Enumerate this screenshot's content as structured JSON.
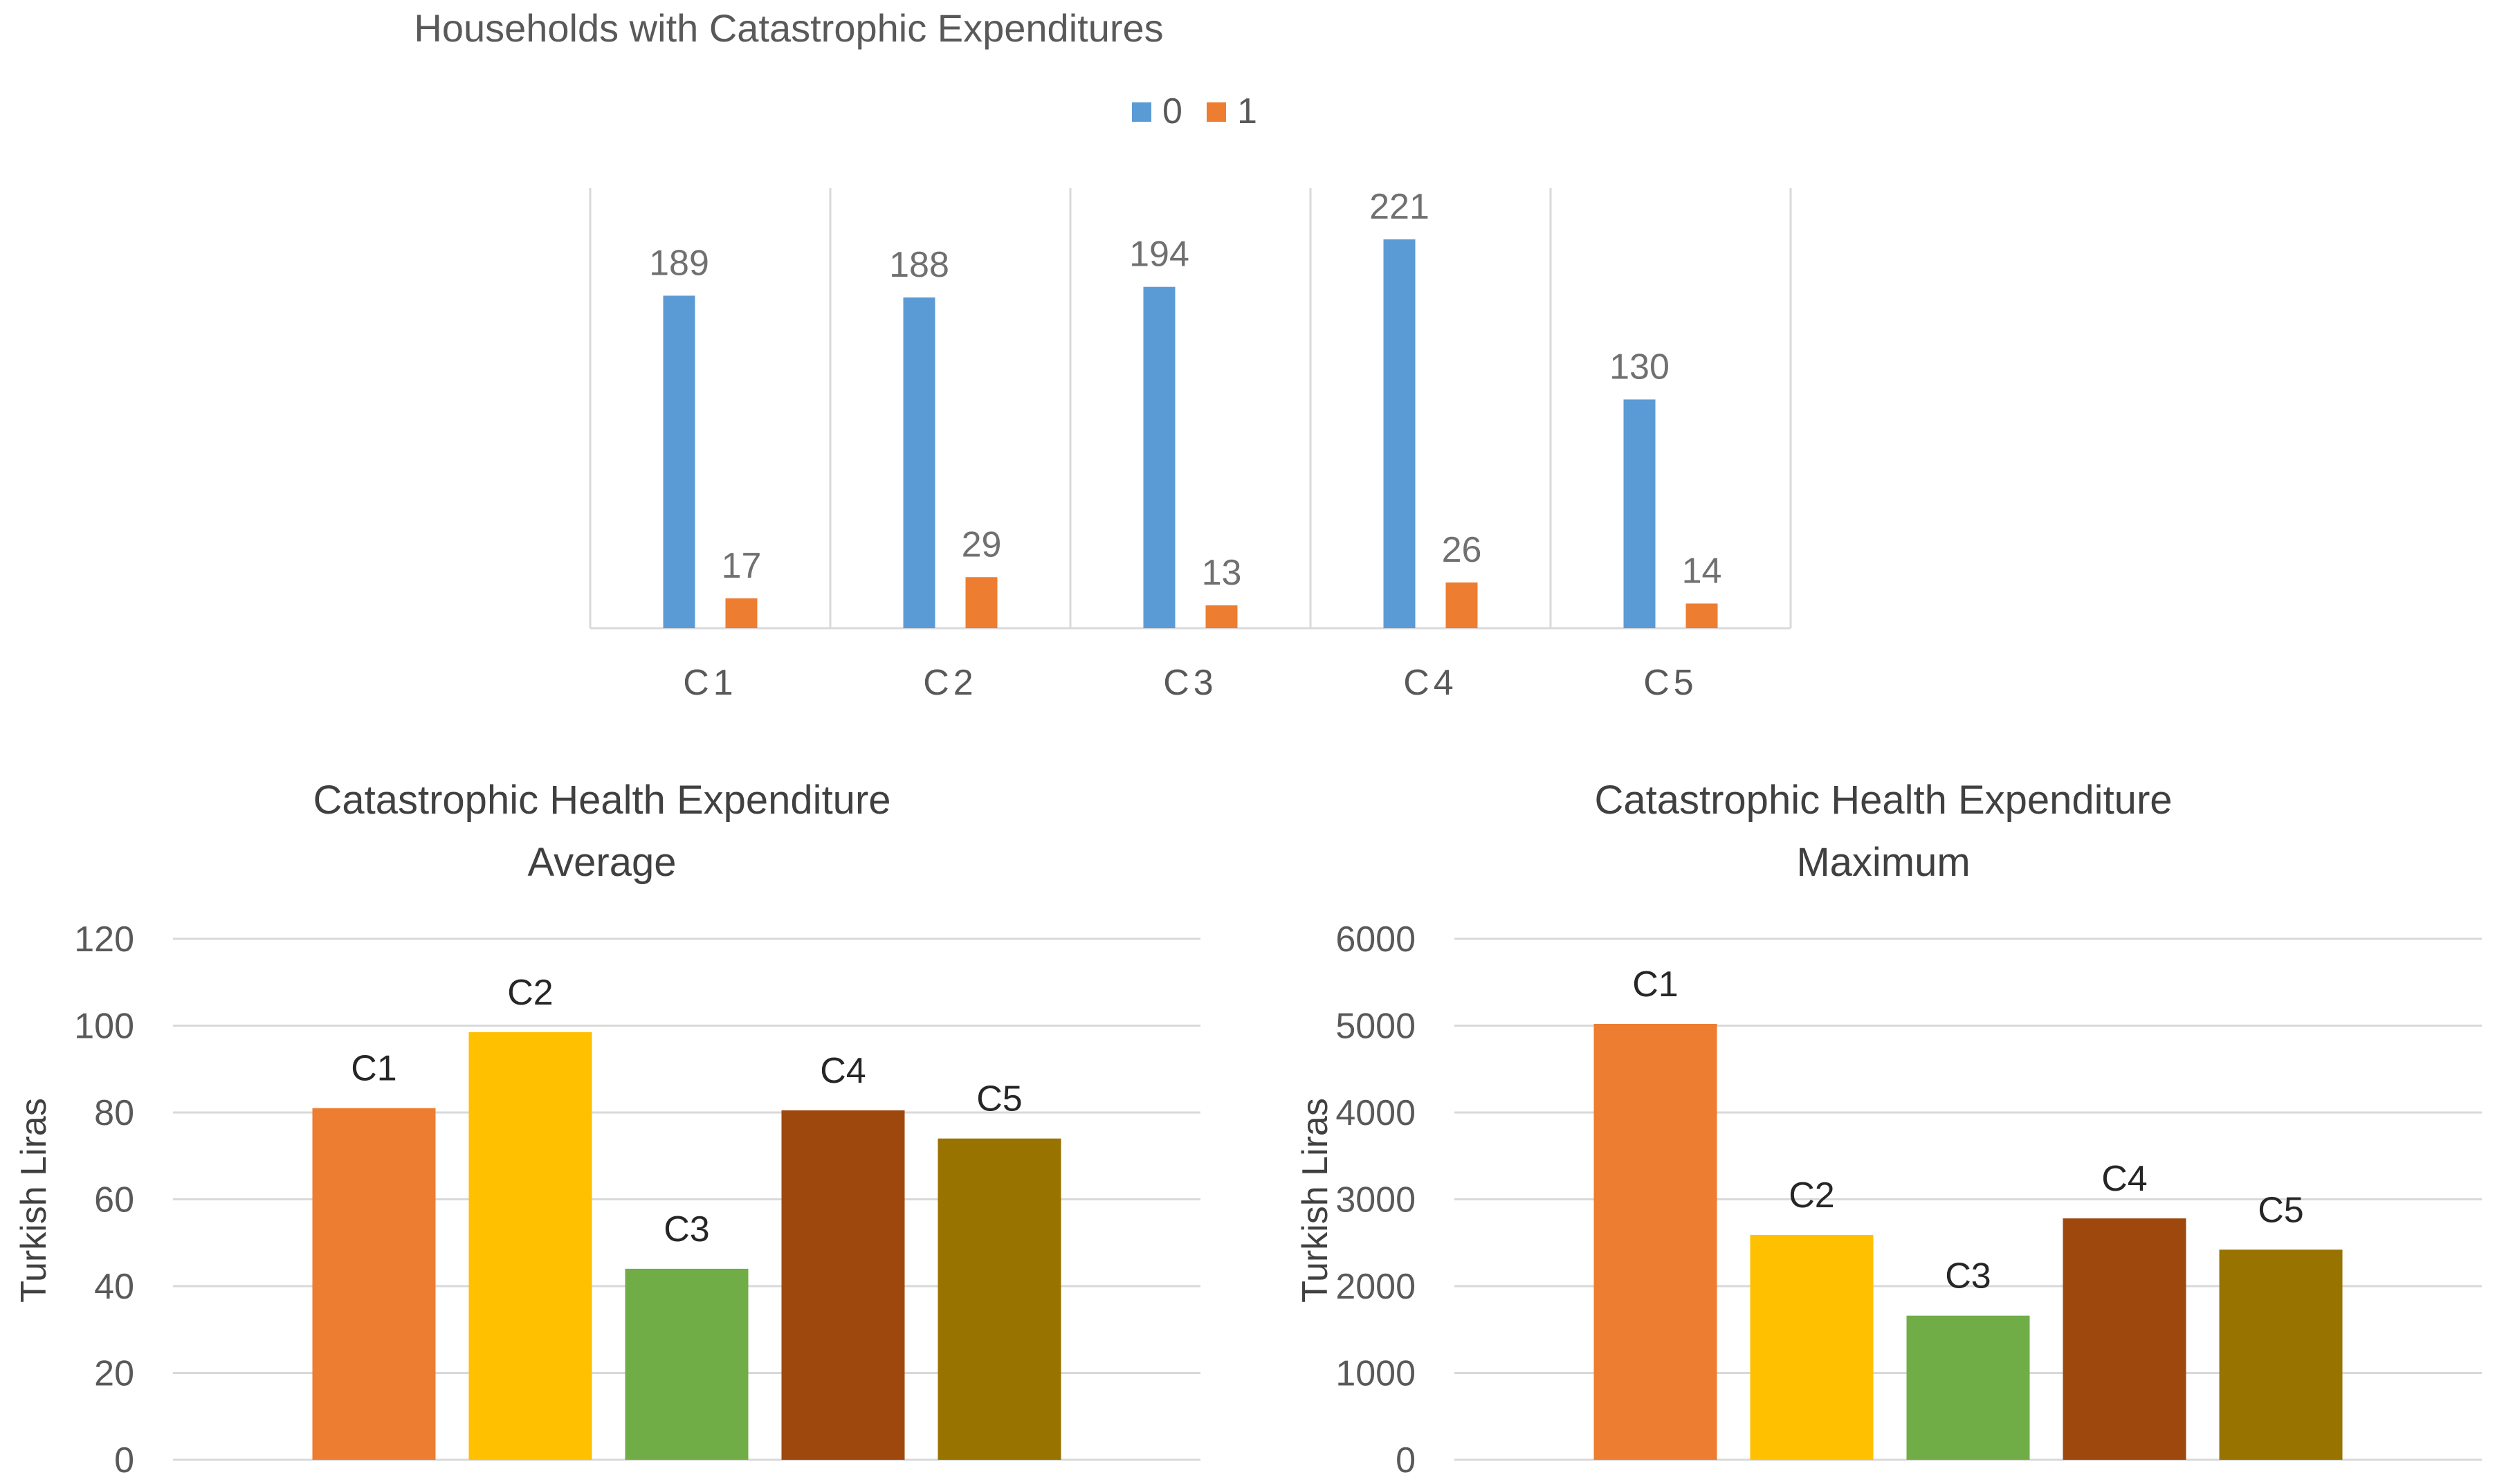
{
  "chart_data": [
    {
      "type": "bar",
      "title": "Households with Catastrophic Expenditures",
      "categories": [
        "C1",
        "C2",
        "C3",
        "C4",
        "C5"
      ],
      "series": [
        {
          "name": "0",
          "color": "#5b9bd5",
          "values": [
            189,
            188,
            194,
            221,
            130
          ]
        },
        {
          "name": "1",
          "color": "#ed7d31",
          "values": [
            17,
            29,
            13,
            26,
            14
          ]
        }
      ],
      "ylim": [
        0,
        221
      ],
      "legend": "top-center",
      "grid": "vertical-separators"
    },
    {
      "type": "bar",
      "title": [
        "Catastrophic Health Expenditure",
        "Average"
      ],
      "ylabel": "Turkish Liras",
      "categories": [
        "C1",
        "C2",
        "C3",
        "C4",
        "C5"
      ],
      "values": [
        81,
        98.5,
        44,
        80.5,
        74
      ],
      "colors": [
        "#ed7d31",
        "#ffc000",
        "#70ad47",
        "#9e480e",
        "#997300"
      ],
      "yticks": [
        "0",
        "20",
        "40",
        "60",
        "80",
        "100",
        "120"
      ],
      "ylim": [
        0,
        120
      ],
      "grid": true
    },
    {
      "type": "bar",
      "title": [
        "Catastrophic Health Expenditure",
        "Maximum"
      ],
      "ylabel": "Turkish Liras",
      "categories": [
        "C1",
        "C2",
        "C3",
        "C4",
        "C5"
      ],
      "values": [
        5020,
        2590,
        1660,
        2780,
        2420
      ],
      "colors": [
        "#ed7d31",
        "#ffc000",
        "#70ad47",
        "#9e480e",
        "#997300"
      ],
      "yticks": [
        "0",
        "1000",
        "2000",
        "3000",
        "4000",
        "5000",
        "6000"
      ],
      "ylim": [
        0,
        6000
      ],
      "grid": true
    }
  ]
}
